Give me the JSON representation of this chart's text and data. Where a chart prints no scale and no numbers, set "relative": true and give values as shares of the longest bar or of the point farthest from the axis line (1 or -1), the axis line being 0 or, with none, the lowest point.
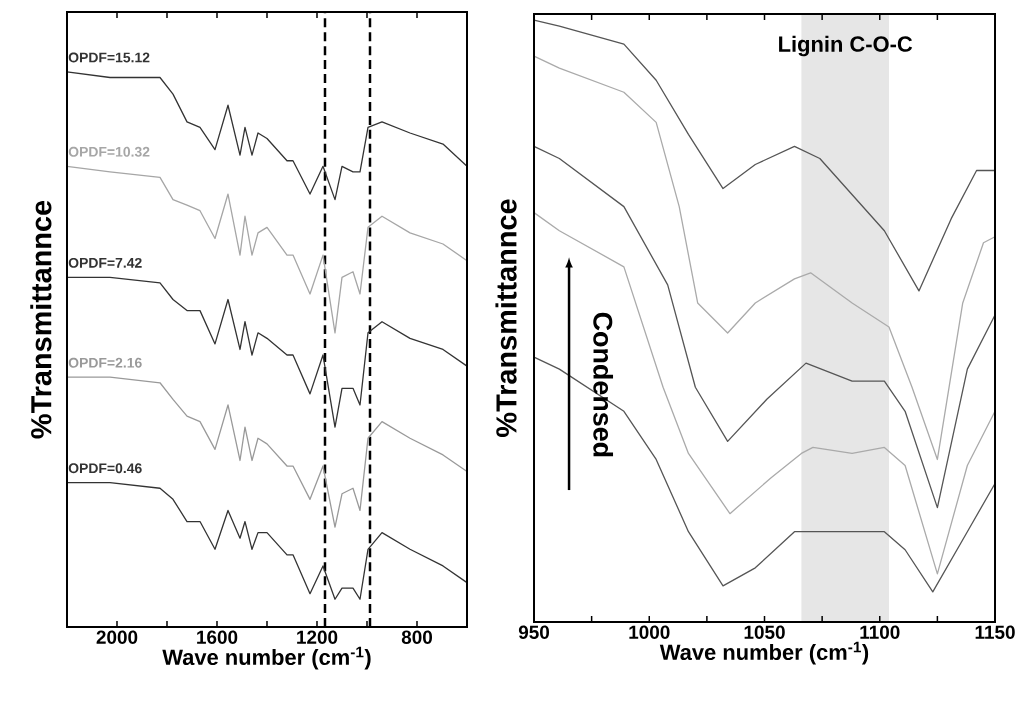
{
  "chart_data": [
    {
      "type": "line",
      "relative": true,
      "xlabel": "Wave number (cm$^{-1}$)",
      "ylabel": "%Transmittannce",
      "xlim": [
        2200,
        600
      ],
      "xticks": [
        2000,
        {
          "value": 1800,
          "label": null
        },
        1600,
        {
          "value": 1400,
          "label": null
        },
        1200,
        {
          "value": 1000,
          "label": null
        },
        800
      ],
      "x": [
        2200,
        2028,
        1828,
        1776,
        1720,
        1668,
        1608,
        1556,
        1508,
        1488,
        1460,
        1436,
        1400,
        1320,
        1296,
        1228,
        1176,
        1128,
        1100,
        1056,
        1028,
        996,
        940,
        828,
        696,
        600
      ],
      "ref_lines": [
        {
          "axis": "x",
          "value": 1168,
          "color": "#000000",
          "line_style": "dashed"
        },
        {
          "axis": "x",
          "value": 988,
          "color": "#000000",
          "line_style": "dashed"
        }
      ],
      "series": [
        {
          "name": "OPDF=15.12",
          "color": "#333333",
          "values": [
            1.0,
            0.99,
            0.99,
            0.96,
            0.91,
            0.9,
            0.86,
            0.94,
            0.85,
            0.9,
            0.85,
            0.89,
            0.88,
            0.84,
            0.84,
            0.78,
            0.83,
            0.77,
            0.83,
            0.82,
            0.82,
            0.9,
            0.91,
            0.89,
            0.87,
            0.83
          ]
        },
        {
          "name": "OPDF=10.32",
          "color": "#a6a6a6",
          "values": [
            0.83,
            0.82,
            0.81,
            0.77,
            0.76,
            0.75,
            0.7,
            0.78,
            0.67,
            0.74,
            0.67,
            0.71,
            0.72,
            0.67,
            0.67,
            0.6,
            0.67,
            0.53,
            0.63,
            0.64,
            0.6,
            0.72,
            0.74,
            0.71,
            0.69,
            0.66
          ]
        },
        {
          "name": "OPDF=7.42",
          "color": "#333333",
          "values": [
            0.63,
            0.63,
            0.62,
            0.59,
            0.57,
            0.57,
            0.51,
            0.59,
            0.5,
            0.55,
            0.49,
            0.53,
            0.52,
            0.49,
            0.49,
            0.42,
            0.49,
            0.36,
            0.43,
            0.43,
            0.4,
            0.53,
            0.55,
            0.52,
            0.5,
            0.47
          ]
        },
        {
          "name": "OPDF=2.16",
          "color": "#999999",
          "values": [
            0.45,
            0.45,
            0.44,
            0.41,
            0.38,
            0.37,
            0.32,
            0.4,
            0.3,
            0.36,
            0.3,
            0.34,
            0.33,
            0.29,
            0.29,
            0.23,
            0.29,
            0.18,
            0.24,
            0.25,
            0.21,
            0.34,
            0.37,
            0.34,
            0.31,
            0.28
          ]
        },
        {
          "name": "OPDF=0.46",
          "color": "#333333",
          "values": [
            0.26,
            0.26,
            0.25,
            0.23,
            0.19,
            0.19,
            0.14,
            0.21,
            0.16,
            0.19,
            0.14,
            0.17,
            0.17,
            0.13,
            0.13,
            0.06,
            0.11,
            0.05,
            0.07,
            0.07,
            0.05,
            0.14,
            0.17,
            0.14,
            0.11,
            0.08
          ]
        }
      ]
    },
    {
      "type": "line",
      "relative": true,
      "xlabel": "Wave number (cm$^{-1}$)",
      "ylabel": "%Transmittannce",
      "xlim": [
        950,
        1150
      ],
      "xticks": [
        950,
        {
          "value": 975,
          "label": null
        },
        1000,
        {
          "value": 1025,
          "label": null
        },
        1050,
        {
          "value": 1075,
          "label": null
        },
        1100,
        {
          "value": 1125,
          "label": null
        },
        1150
      ],
      "bands": [
        {
          "axis": "x",
          "from": 1066,
          "to": 1104,
          "label": "Lignin C-O-C",
          "color": "#e6e6e6"
        }
      ],
      "annotations": [
        "Condensed"
      ],
      "series": [
        {
          "color": "#555555",
          "x": [
            950,
            961,
            989,
            1003,
            1017,
            1032,
            1046,
            1063,
            1074,
            1102,
            1117,
            1131,
            1142,
            1150
          ],
          "values": [
            1.0,
            0.99,
            0.96,
            0.9,
            0.81,
            0.72,
            0.76,
            0.79,
            0.77,
            0.65,
            0.55,
            0.67,
            0.75,
            0.75
          ]
        },
        {
          "color": "#aaaaaa",
          "x": [
            950,
            961,
            989,
            1003,
            1013,
            1021,
            1034,
            1046,
            1063,
            1070,
            1088,
            1104,
            1114,
            1125,
            1136,
            1145,
            1150
          ],
          "values": [
            0.94,
            0.92,
            0.88,
            0.83,
            0.69,
            0.53,
            0.48,
            0.53,
            0.57,
            0.58,
            0.53,
            0.49,
            0.39,
            0.27,
            0.53,
            0.63,
            0.64
          ]
        },
        {
          "color": "#555555",
          "x": [
            950,
            961,
            989,
            1008,
            1020,
            1034,
            1051,
            1068,
            1088,
            1102,
            1111,
            1125,
            1138,
            1150
          ],
          "values": [
            0.79,
            0.77,
            0.69,
            0.56,
            0.39,
            0.3,
            0.37,
            0.43,
            0.4,
            0.4,
            0.35,
            0.19,
            0.42,
            0.51
          ]
        },
        {
          "color": "#aaaaaa",
          "x": [
            950,
            961,
            989,
            1006,
            1017,
            1035,
            1053,
            1066,
            1071,
            1088,
            1102,
            1111,
            1125,
            1138,
            1150
          ],
          "values": [
            0.68,
            0.65,
            0.59,
            0.39,
            0.28,
            0.18,
            0.24,
            0.28,
            0.29,
            0.28,
            0.29,
            0.26,
            0.08,
            0.26,
            0.35
          ]
        },
        {
          "color": "#555555",
          "x": [
            950,
            961,
            989,
            1003,
            1017,
            1032,
            1046,
            1063,
            1071,
            1102,
            1111,
            1123,
            1138,
            1150
          ],
          "values": [
            0.44,
            0.42,
            0.35,
            0.27,
            0.15,
            0.06,
            0.09,
            0.15,
            0.15,
            0.15,
            0.12,
            0.05,
            0.15,
            0.23
          ]
        }
      ]
    }
  ]
}
